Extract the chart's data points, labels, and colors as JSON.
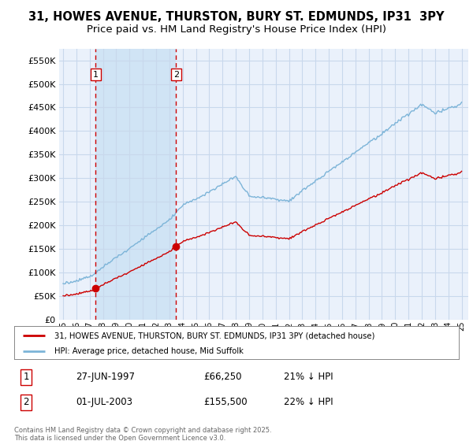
{
  "title": "31, HOWES AVENUE, THURSTON, BURY ST. EDMUNDS, IP31  3PY",
  "subtitle": "Price paid vs. HM Land Registry's House Price Index (HPI)",
  "ylabel_ticks": [
    "£0",
    "£50K",
    "£100K",
    "£150K",
    "£200K",
    "£250K",
    "£300K",
    "£350K",
    "£400K",
    "£450K",
    "£500K",
    "£550K"
  ],
  "ylabel_vals": [
    0,
    50000,
    100000,
    150000,
    200000,
    250000,
    300000,
    350000,
    400000,
    450000,
    500000,
    550000
  ],
  "sale1_date": "27-JUN-1997",
  "sale1_price": 66250,
  "sale1_price_str": "£66,250",
  "sale1_hpi_pct": "21% ↓ HPI",
  "sale2_date": "01-JUL-2003",
  "sale2_price": 155500,
  "sale2_price_str": "£155,500",
  "sale2_hpi_pct": "22% ↓ HPI",
  "hpi_color": "#7cb4d8",
  "sale_color": "#cc0000",
  "vline_color": "#cc0000",
  "shade_color": "#d0e4f5",
  "legend_line1": "31, HOWES AVENUE, THURSTON, BURY ST. EDMUNDS, IP31 3PY (detached house)",
  "legend_line2": "HPI: Average price, detached house, Mid Suffolk",
  "footer": "Contains HM Land Registry data © Crown copyright and database right 2025.\nThis data is licensed under the Open Government Licence v3.0.",
  "background_color": "#eaf1fb",
  "grid_color": "#c8d8ec",
  "title_fontsize": 10.5,
  "subtitle_fontsize": 9.5,
  "sale1_x": 1997.458,
  "sale2_x": 2003.5
}
